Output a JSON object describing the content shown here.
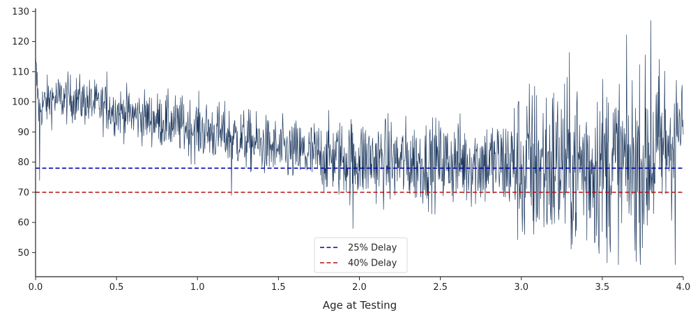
{
  "chart_data": {
    "type": "line",
    "title": "",
    "xlabel": "Age at Testing",
    "ylabel": "",
    "xlim": [
      0.0,
      4.0
    ],
    "ylim": [
      42,
      131
    ],
    "x_ticks": [
      0.0,
      0.5,
      1.0,
      1.5,
      2.0,
      2.5,
      3.0,
      3.5,
      4.0
    ],
    "x_tick_labels": [
      "0.0",
      "0.5",
      "1.0",
      "1.5",
      "2.0",
      "2.5",
      "3.0",
      "3.5",
      "4.0"
    ],
    "y_ticks": [
      50,
      60,
      70,
      80,
      90,
      100,
      110,
      120,
      130
    ],
    "y_tick_labels": [
      "50",
      "60",
      "70",
      "80",
      "90",
      "100",
      "110",
      "120",
      "130"
    ],
    "grid": false,
    "legend_position": "bottom-center",
    "series": [
      {
        "style": "solid-thin",
        "color": "#1f3a5f",
        "trend_x": [
          0.0,
          0.02,
          0.1,
          0.25,
          0.5,
          0.75,
          1.0,
          1.25,
          1.5,
          1.75,
          2.0,
          2.25,
          2.5,
          2.75,
          3.0,
          3.25,
          3.5,
          3.75,
          3.9,
          4.0
        ],
        "trend_y": [
          112,
          98,
          101,
          101,
          97,
          94,
          91,
          88,
          84,
          82,
          81,
          80,
          80,
          80,
          79,
          79,
          79,
          79,
          86,
          93
        ],
        "spread_x": [
          0.0,
          0.5,
          1.0,
          1.5,
          2.0,
          2.5,
          2.9,
          3.0,
          3.5,
          3.9,
          4.0
        ],
        "spread_y": [
          4,
          4,
          5,
          5,
          7,
          7,
          8,
          14,
          15,
          15,
          6
        ],
        "approx_points": 1600,
        "extremes": [
          {
            "x": 0.0,
            "y": 115
          },
          {
            "x": 0.025,
            "y": 74
          },
          {
            "x": 0.44,
            "y": 110
          },
          {
            "x": 1.21,
            "y": 69
          },
          {
            "x": 1.96,
            "y": 58
          },
          {
            "x": 3.02,
            "y": 56
          },
          {
            "x": 3.8,
            "y": 127
          },
          {
            "x": 3.95,
            "y": 46
          }
        ]
      },
      {
        "name": "25% Delay",
        "style": "dashed",
        "color": "#0000b3",
        "x": [
          0.0,
          4.0
        ],
        "y": [
          78,
          78
        ]
      },
      {
        "name": "40% Delay",
        "style": "dashed",
        "color": "#b01010",
        "x": [
          0.0,
          4.0
        ],
        "y": [
          70,
          70
        ]
      }
    ]
  }
}
